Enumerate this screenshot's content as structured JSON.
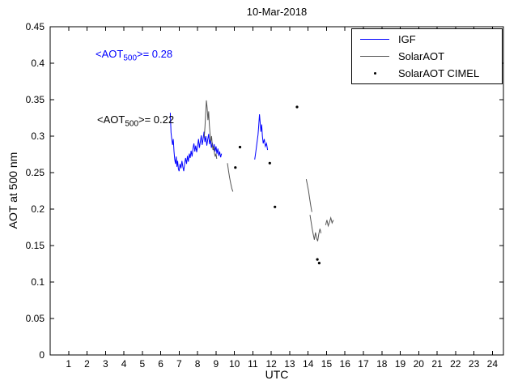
{
  "chart_data": {
    "type": "line",
    "title": "10-Mar-2018",
    "xlabel": "UTC",
    "ylabel": "AOT at 500 nm",
    "xlim": [
      0,
      24.6
    ],
    "ylim": [
      0,
      0.45
    ],
    "xticks": [
      1,
      2,
      3,
      4,
      5,
      6,
      7,
      8,
      9,
      10,
      11,
      12,
      13,
      14,
      15,
      16,
      17,
      18,
      19,
      20,
      21,
      22,
      23,
      24
    ],
    "yticks": [
      0,
      0.05,
      0.1,
      0.15,
      0.2,
      0.25,
      0.3,
      0.35,
      0.4,
      0.45
    ],
    "ytick_labels": [
      "0",
      "0.05",
      "0.1",
      "0.15",
      "0.2",
      "0.25",
      "0.3",
      "0.35",
      "0.4",
      "0.45"
    ],
    "grid": false,
    "legend": {
      "position": "top-right",
      "entries": [
        "IGF",
        "SolarAOT",
        "SolarAOT CIMEL"
      ]
    },
    "annotations": [
      {
        "prefix": "<AOT",
        "sub": "500",
        "suffix": ">= 0.28",
        "x": 2.45,
        "y": 0.412,
        "color": "#0000ff"
      },
      {
        "prefix": "<AOT",
        "sub": "500",
        "suffix": ">= 0.22",
        "x": 2.55,
        "y": 0.322,
        "color": "#000000"
      }
    ],
    "series": [
      {
        "name": "IGF",
        "type": "line",
        "color": "#0000ff",
        "segments": [
          [
            [
              6.52,
              0.332
            ],
            [
              6.56,
              0.305
            ],
            [
              6.6,
              0.296
            ],
            [
              6.64,
              0.288
            ],
            [
              6.68,
              0.296
            ],
            [
              6.72,
              0.279
            ],
            [
              6.76,
              0.268
            ],
            [
              6.8,
              0.262
            ],
            [
              6.84,
              0.272
            ],
            [
              6.88,
              0.258
            ],
            [
              6.92,
              0.266
            ],
            [
              6.96,
              0.255
            ],
            [
              7.0,
              0.252
            ],
            [
              7.05,
              0.262
            ],
            [
              7.1,
              0.256
            ],
            [
              7.15,
              0.266
            ],
            [
              7.2,
              0.258
            ],
            [
              7.25,
              0.252
            ],
            [
              7.3,
              0.263
            ],
            [
              7.35,
              0.27
            ],
            [
              7.4,
              0.262
            ],
            [
              7.45,
              0.273
            ],
            [
              7.5,
              0.265
            ],
            [
              7.55,
              0.276
            ],
            [
              7.6,
              0.27
            ],
            [
              7.65,
              0.28
            ],
            [
              7.7,
              0.272
            ],
            [
              7.75,
              0.283
            ],
            [
              7.8,
              0.29
            ],
            [
              7.85,
              0.279
            ],
            [
              7.9,
              0.287
            ],
            [
              7.95,
              0.278
            ],
            [
              8.0,
              0.286
            ],
            [
              8.05,
              0.296
            ],
            [
              8.1,
              0.284
            ],
            [
              8.15,
              0.292
            ],
            [
              8.2,
              0.301
            ],
            [
              8.25,
              0.288
            ],
            [
              8.3,
              0.296
            ],
            [
              8.35,
              0.306
            ],
            [
              8.4,
              0.292
            ],
            [
              8.45,
              0.3
            ],
            [
              8.5,
              0.287
            ],
            [
              8.55,
              0.295
            ],
            [
              8.6,
              0.303
            ],
            [
              8.65,
              0.289
            ],
            [
              8.7,
              0.296
            ],
            [
              8.75,
              0.284
            ],
            [
              8.8,
              0.291
            ],
            [
              8.85,
              0.281
            ],
            [
              8.9,
              0.289
            ],
            [
              8.95,
              0.279
            ],
            [
              9.0,
              0.286
            ],
            [
              9.05,
              0.276
            ],
            [
              9.1,
              0.283
            ],
            [
              9.15,
              0.273
            ],
            [
              9.2,
              0.279
            ],
            [
              9.25,
              0.271
            ],
            [
              9.3,
              0.276
            ]
          ],
          [
            [
              11.1,
              0.268
            ],
            [
              11.16,
              0.278
            ],
            [
              11.22,
              0.29
            ],
            [
              11.28,
              0.302
            ],
            [
              11.32,
              0.315
            ],
            [
              11.36,
              0.33
            ],
            [
              11.4,
              0.318
            ],
            [
              11.44,
              0.306
            ],
            [
              11.48,
              0.316
            ],
            [
              11.52,
              0.3
            ],
            [
              11.56,
              0.29
            ],
            [
              11.62,
              0.296
            ],
            [
              11.68,
              0.286
            ],
            [
              11.74,
              0.29
            ],
            [
              11.8,
              0.281
            ]
          ]
        ]
      },
      {
        "name": "SolarAOT",
        "type": "line",
        "color": "#555555",
        "segments": [
          [
            [
              8.36,
              0.298
            ],
            [
              8.4,
              0.312
            ],
            [
              8.44,
              0.33
            ],
            [
              8.48,
              0.349
            ],
            [
              8.52,
              0.338
            ],
            [
              8.56,
              0.322
            ],
            [
              8.6,
              0.334
            ],
            [
              8.64,
              0.315
            ],
            [
              8.68,
              0.302
            ],
            [
              8.72,
              0.293
            ],
            [
              8.76,
              0.3
            ],
            [
              8.8,
              0.288
            ],
            [
              8.84,
              0.281
            ],
            [
              8.88,
              0.286
            ],
            [
              8.92,
              0.276
            ],
            [
              8.96,
              0.272
            ],
            [
              9.0,
              0.276
            ],
            [
              9.04,
              0.269
            ]
          ],
          [
            [
              9.62,
              0.263
            ],
            [
              9.68,
              0.252
            ],
            [
              9.74,
              0.243
            ],
            [
              9.8,
              0.235
            ],
            [
              9.86,
              0.228
            ],
            [
              9.92,
              0.224
            ]
          ],
          [
            [
              13.9,
              0.241
            ],
            [
              13.96,
              0.233
            ],
            [
              14.02,
              0.225
            ],
            [
              14.08,
              0.215
            ],
            [
              14.14,
              0.205
            ],
            [
              14.2,
              0.196
            ]
          ],
          [
            [
              14.1,
              0.192
            ],
            [
              14.16,
              0.183
            ],
            [
              14.22,
              0.173
            ],
            [
              14.28,
              0.165
            ],
            [
              14.34,
              0.158
            ],
            [
              14.4,
              0.168
            ],
            [
              14.46,
              0.16
            ],
            [
              14.52,
              0.156
            ],
            [
              14.58,
              0.166
            ],
            [
              14.64,
              0.173
            ],
            [
              14.7,
              0.167
            ]
          ],
          [
            [
              14.95,
              0.178
            ],
            [
              15.02,
              0.185
            ],
            [
              15.09,
              0.177
            ],
            [
              15.16,
              0.182
            ],
            [
              15.23,
              0.188
            ],
            [
              15.3,
              0.181
            ],
            [
              15.37,
              0.185
            ]
          ]
        ]
      },
      {
        "name": "SolarAOT CIMEL",
        "type": "scatter",
        "color": "#000000",
        "points": [
          [
            10.05,
            0.257
          ],
          [
            10.3,
            0.285
          ],
          [
            11.92,
            0.263
          ],
          [
            12.2,
            0.203
          ],
          [
            13.4,
            0.34
          ],
          [
            14.5,
            0.131
          ],
          [
            14.6,
            0.126
          ]
        ]
      }
    ]
  }
}
